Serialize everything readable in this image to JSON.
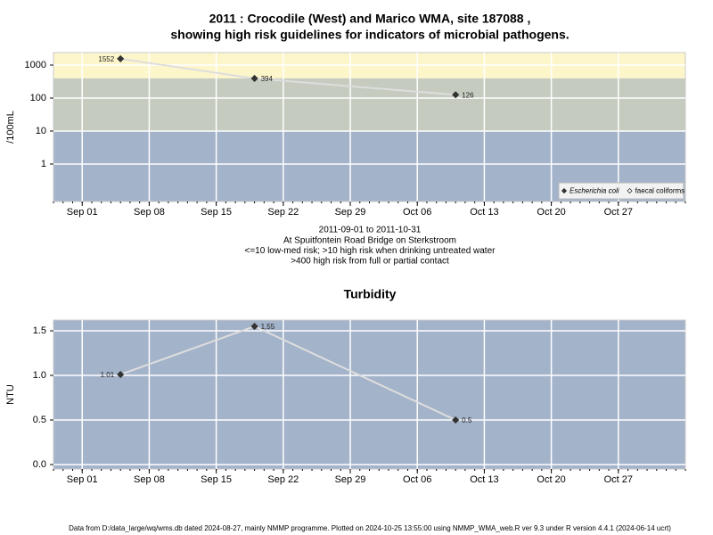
{
  "chart_data": [
    {
      "type": "line",
      "title": "2011 : Crocodile (West) and Marico WMA, site 187088 ,",
      "subtitle": "showing high risk guidelines for indicators of microbial pathogens.",
      "y_label": "/100mL",
      "notes": [
        "2011-09-01 to 2011-10-31",
        "At Spuitfontein Road Bridge on Sterkstroom",
        "<=10 low-med risk; >10 high risk when drinking untreated water",
        ">400 high risk from full or partial contact"
      ],
      "x": [
        "2011-09-05",
        "2011-09-19",
        "2011-10-10"
      ],
      "series": [
        {
          "name": "Escherichia coli",
          "color": "#333333",
          "marker": "filled-diamond",
          "font_style": "italic",
          "values": [
            1552,
            394,
            126
          ]
        },
        {
          "name": "faecal coliforms",
          "color": "#333333",
          "marker": "open-diamond",
          "font_style": "normal",
          "values": [
            null,
            null,
            null
          ]
        }
      ],
      "line_color": "#dddddd",
      "xlim": [
        "2011-08-29",
        "2011-11-03"
      ],
      "xticks": [
        {
          "value": "2011-09-01",
          "label": "Sep 01"
        },
        {
          "value": "2011-09-08",
          "label": "Sep 08"
        },
        {
          "value": "2011-09-15",
          "label": "Sep 15"
        },
        {
          "value": "2011-09-22",
          "label": "Sep 22"
        },
        {
          "value": "2011-09-29",
          "label": "Sep 29"
        },
        {
          "value": "2011-10-06",
          "label": "Oct 06"
        },
        {
          "value": "2011-10-13",
          "label": "Oct 13"
        },
        {
          "value": "2011-10-20",
          "label": "Oct 20"
        },
        {
          "value": "2011-10-27",
          "label": "Oct 27"
        }
      ],
      "yscale": "log",
      "ylim": [
        0.073,
        2390
      ],
      "yticks": [
        1,
        10,
        100,
        1000
      ],
      "band_breaks": [
        10,
        400
      ],
      "band_colors": [
        "#a3b3ca",
        "#c5ccbf",
        "#fdf6cb"
      ],
      "grid": true,
      "legend": "bottom-right"
    },
    {
      "type": "line",
      "title": "Turbidity",
      "y_label": "NTU",
      "x": [
        "2011-09-05",
        "2011-09-19",
        "2011-10-10"
      ],
      "series": [
        {
          "name": "Turbidity",
          "color": "#333333",
          "marker": "filled-diamond",
          "values": [
            1.01,
            1.55,
            0.5
          ]
        }
      ],
      "line_color": "#dddddd",
      "xlim": [
        "2011-08-29",
        "2011-11-03"
      ],
      "xticks": [
        {
          "value": "2011-09-01",
          "label": "Sep 01"
        },
        {
          "value": "2011-09-08",
          "label": "Sep 08"
        },
        {
          "value": "2011-09-15",
          "label": "Sep 15"
        },
        {
          "value": "2011-09-22",
          "label": "Sep 22"
        },
        {
          "value": "2011-09-29",
          "label": "Sep 29"
        },
        {
          "value": "2011-10-06",
          "label": "Oct 06"
        },
        {
          "value": "2011-10-13",
          "label": "Oct 13"
        },
        {
          "value": "2011-10-20",
          "label": "Oct 20"
        },
        {
          "value": "2011-10-27",
          "label": "Oct 27"
        }
      ],
      "ylim": [
        -0.05,
        1.62
      ],
      "yticks": [
        {
          "value": 0,
          "label": "0.0"
        },
        0.5,
        {
          "value": 1,
          "label": "1.0"
        },
        1.5
      ],
      "background": "#a3b3ca",
      "grid": true
    }
  ],
  "footer": "Data from D:/data_large/wq/wms.db dated 2024-08-27, mainly NMMP programme. Plotted on 2024-10-25 13:55:00 using NMMP_WMA_web.R ver 9.3 under R version 4.4.1 (2024-06-14 ucrt)"
}
